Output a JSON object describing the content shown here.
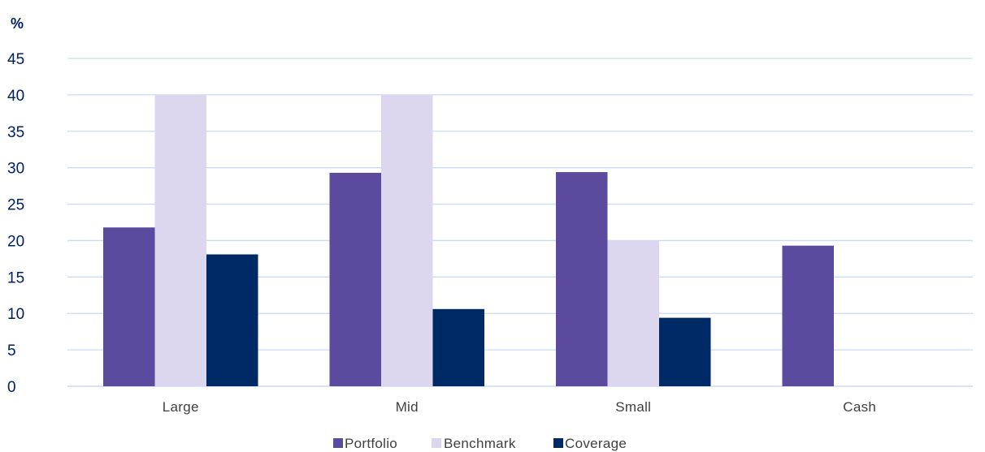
{
  "chart_data": {
    "type": "bar",
    "unit_label": "%",
    "categories": [
      "Large",
      "Mid",
      "Small",
      "Cash"
    ],
    "series": [
      {
        "name": "Portfolio",
        "color": "#5B4A9E",
        "values": [
          21.8,
          29.3,
          29.4,
          19.3
        ]
      },
      {
        "name": "Benchmark",
        "color": "#DCD7EE",
        "values": [
          40,
          40,
          20,
          null
        ]
      },
      {
        "name": "Coverage",
        "color": "#002A66",
        "values": [
          18.1,
          10.6,
          9.4,
          null
        ]
      }
    ],
    "ylim": [
      0,
      45
    ],
    "yticks": [
      0,
      5,
      10,
      15,
      20,
      25,
      30,
      35,
      40,
      45
    ],
    "grid": true,
    "gridline_color": "#C9DCF0",
    "legend_position": "bottom-center"
  }
}
